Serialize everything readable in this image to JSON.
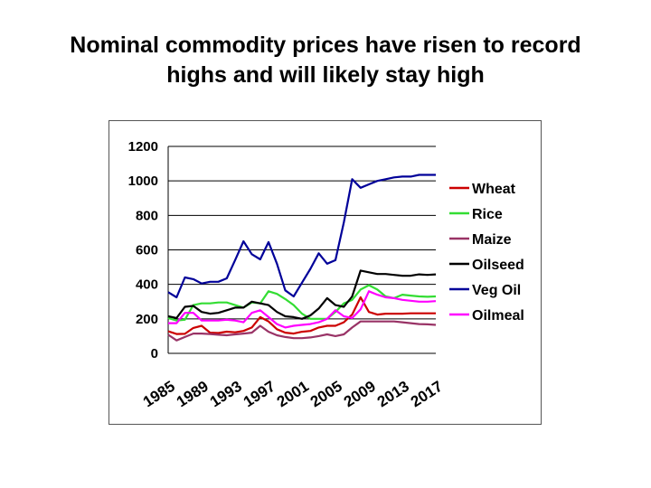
{
  "title": {
    "line1": "Nominal commodity prices have risen to record",
    "line2": "highs and will likely stay high"
  },
  "chart_data": {
    "type": "line",
    "title": "",
    "xlabel": "",
    "ylabel": "",
    "ylim": [
      0,
      1200
    ],
    "yticks": [
      0,
      200,
      400,
      600,
      800,
      1000,
      1200
    ],
    "grid": "horizontal",
    "legend_position": "right",
    "x": [
      1985,
      1986,
      1987,
      1988,
      1989,
      1990,
      1991,
      1992,
      1993,
      1994,
      1995,
      1996,
      1997,
      1998,
      1999,
      2000,
      2001,
      2002,
      2003,
      2004,
      2005,
      2006,
      2007,
      2008,
      2009,
      2010,
      2011,
      2012,
      2013,
      2014,
      2015,
      2016,
      2017
    ],
    "xtick_labels": [
      "1985",
      "1989",
      "1993",
      "1997",
      "2001",
      "2005",
      "2009",
      "2013",
      "2017"
    ],
    "series": [
      {
        "name": "Wheat",
        "color": "#cc0000",
        "values": [
          128,
          112,
          113,
          147,
          160,
          120,
          118,
          126,
          122,
          130,
          150,
          210,
          185,
          140,
          120,
          115,
          125,
          130,
          150,
          160,
          160,
          180,
          225,
          325,
          240,
          225,
          230,
          230,
          230,
          232,
          232,
          232,
          232
        ]
      },
      {
        "name": "Rice",
        "color": "#33dd33",
        "values": [
          205,
          190,
          195,
          280,
          290,
          290,
          295,
          295,
          280,
          265,
          295,
          290,
          360,
          345,
          315,
          280,
          230,
          200,
          200,
          200,
          240,
          290,
          310,
          370,
          395,
          370,
          330,
          320,
          340,
          335,
          330,
          328,
          330
        ]
      },
      {
        "name": "Maize",
        "color": "#993366",
        "values": [
          108,
          75,
          95,
          115,
          115,
          112,
          108,
          105,
          110,
          115,
          120,
          160,
          125,
          105,
          95,
          88,
          88,
          92,
          100,
          110,
          100,
          110,
          150,
          185,
          185,
          185,
          185,
          185,
          180,
          175,
          170,
          168,
          165
        ]
      },
      {
        "name": "Oilseed",
        "color": "#000000",
        "values": [
          215,
          205,
          270,
          275,
          240,
          230,
          235,
          250,
          265,
          265,
          300,
          290,
          280,
          240,
          215,
          210,
          200,
          220,
          260,
          320,
          280,
          270,
          330,
          480,
          470,
          460,
          460,
          455,
          450,
          450,
          458,
          455,
          458
        ]
      },
      {
        "name": "Veg Oil",
        "color": "#000099",
        "values": [
          355,
          325,
          440,
          430,
          405,
          415,
          415,
          435,
          540,
          650,
          575,
          545,
          645,
          520,
          365,
          330,
          410,
          490,
          580,
          520,
          540,
          760,
          1010,
          960,
          980,
          1000,
          1010,
          1020,
          1025,
          1025,
          1035,
          1035,
          1035
        ]
      },
      {
        "name": "Oilmeal",
        "color": "#ff00ff",
        "values": [
          175,
          175,
          235,
          235,
          190,
          190,
          190,
          195,
          190,
          180,
          235,
          250,
          210,
          170,
          150,
          160,
          165,
          170,
          180,
          200,
          250,
          215,
          205,
          255,
          360,
          340,
          325,
          320,
          310,
          305,
          300,
          300,
          303
        ]
      }
    ]
  }
}
